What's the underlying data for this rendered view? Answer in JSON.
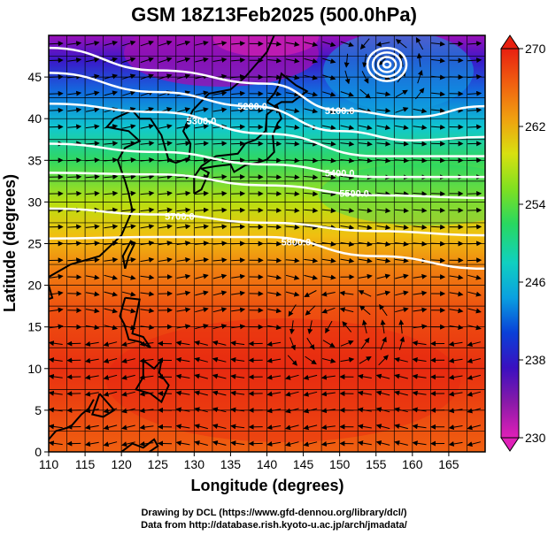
{
  "title": "GSM 18Z13Feb2025 (500.0hPa)",
  "xaxis": {
    "label": "Longitude (degrees)",
    "range": [
      110,
      170
    ],
    "ticks": [
      110,
      115,
      120,
      125,
      130,
      135,
      140,
      145,
      150,
      155,
      160,
      165
    ]
  },
  "yaxis": {
    "label": "Latitude  (degrees)",
    "range": [
      0,
      50
    ],
    "ticks": [
      0,
      5,
      10,
      15,
      20,
      25,
      30,
      35,
      40,
      45
    ]
  },
  "colorbar": {
    "ticks": [
      230,
      238,
      246,
      254,
      262,
      270
    ],
    "min": 230,
    "max": 270,
    "colors": [
      "#e020b8",
      "#8a1aa8",
      "#3a10c0",
      "#0a40d8",
      "#0aa0e0",
      "#10d0c0",
      "#28d860",
      "#80e020",
      "#d8e010",
      "#f0a010",
      "#f06010",
      "#e82010"
    ]
  },
  "contours": [
    {
      "label": "5100.0",
      "lat_at_lon": [
        [
          110,
          48.5
        ],
        [
          125,
          45.8
        ],
        [
          140,
          44.2
        ],
        [
          150,
          41.0
        ],
        [
          160,
          40.2
        ],
        [
          170,
          41.5
        ]
      ]
    },
    {
      "label": "5200.0",
      "lat_at_lon": [
        [
          110,
          45.5
        ],
        [
          125,
          43.2
        ],
        [
          138,
          41.5
        ],
        [
          150,
          38.5
        ],
        [
          160,
          37.4
        ],
        [
          170,
          37.8
        ]
      ]
    },
    {
      "label": "5300.0",
      "lat_at_lon": [
        [
          110,
          41.8
        ],
        [
          125,
          40.8
        ],
        [
          140,
          38.2
        ],
        [
          155,
          35.5
        ],
        [
          170,
          35.5
        ]
      ]
    },
    {
      "label": "5400.0",
      "lat_at_lon": [
        [
          110,
          37.0
        ],
        [
          125,
          36.0
        ],
        [
          140,
          34.5
        ],
        [
          155,
          33.0
        ],
        [
          170,
          33.0
        ]
      ]
    },
    {
      "label": "5500.0",
      "lat_at_lon": [
        [
          110,
          33.5
        ],
        [
          125,
          33.3
        ],
        [
          140,
          32.0
        ],
        [
          155,
          30.8
        ],
        [
          170,
          30.5
        ]
      ]
    },
    {
      "label": "5700.0",
      "lat_at_lon": [
        [
          110,
          29.2
        ],
        [
          125,
          28.5
        ],
        [
          140,
          27.5
        ],
        [
          155,
          26.5
        ],
        [
          170,
          26.0
        ]
      ]
    },
    {
      "label": "5800.0",
      "lat_at_lon": [
        [
          110,
          25.6
        ],
        [
          125,
          25.8
        ],
        [
          140,
          25.8
        ],
        [
          155,
          23.5
        ],
        [
          170,
          22.0
        ]
      ]
    }
  ],
  "credits": {
    "line1": "Drawing by DCL (https://www.gfd-dennou.org/library/dcl/)",
    "line2": "Data from http://database.rish.kyoto-u.ac.jp/arch/jmadata/"
  }
}
